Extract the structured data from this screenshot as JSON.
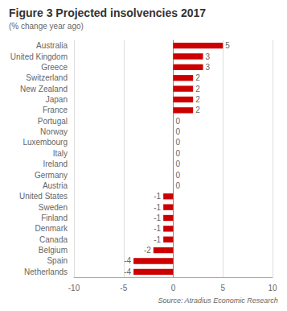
{
  "chart_data": {
    "type": "bar",
    "orientation": "horizontal",
    "title": "Figure 3 Projected insolvencies 2017",
    "subtitle": "(% change year ago)",
    "source": "Source: Atradius Economic Research",
    "categories": [
      "Australia",
      "United Kingdom",
      "Greece",
      "Switzerland",
      "New Zealand",
      "Japan",
      "France",
      "Portugal",
      "Norway",
      "Luxembourg",
      "Italy",
      "Ireland",
      "Germany",
      "Austria",
      "United States",
      "Sweden",
      "Finland",
      "Denmark",
      "Canada",
      "Belgium",
      "Spain",
      "Netherlands"
    ],
    "values": [
      5,
      3,
      3,
      2,
      2,
      2,
      2,
      0,
      0,
      0,
      0,
      0,
      0,
      0,
      -1,
      -1,
      -1,
      -1,
      -1,
      -2,
      -4,
      -4
    ],
    "color": "#cc0000",
    "xlim": [
      -10,
      10
    ],
    "xticks": [
      -10,
      -5,
      0,
      5,
      10
    ],
    "grid": true,
    "data_labels": true
  }
}
